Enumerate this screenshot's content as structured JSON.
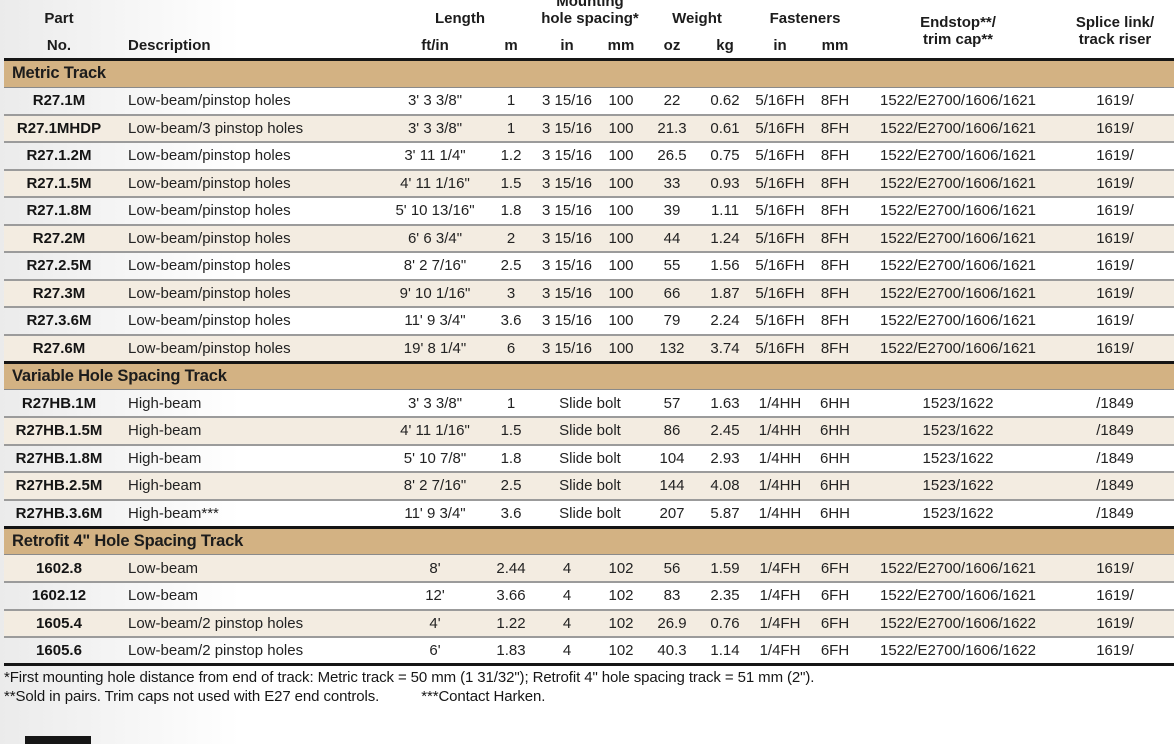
{
  "header": {
    "part_line1": "Part",
    "part_line2": "No.",
    "description": "Description",
    "length": {
      "label": "Length",
      "sub1": "ft/in",
      "sub2": "m"
    },
    "mounting": {
      "line1": "Mounting",
      "line2": "hole spacing*",
      "sub1": "in",
      "sub2": "mm"
    },
    "weight": {
      "label": "Weight",
      "sub1": "oz",
      "sub2": "kg"
    },
    "fasteners": {
      "label": "Fasteners",
      "sub1": "in",
      "sub2": "mm"
    },
    "endstop": {
      "line1": "Endstop**/",
      "line2": "trim cap**"
    },
    "splice": {
      "line1": "Splice link/",
      "line2": "track riser"
    }
  },
  "colors": {
    "section_band": "#d3b283",
    "row_shaded": "#f3ece1",
    "row_plain": "#ffffff",
    "rule_dark": "#161616",
    "rule_light": "#9b9b9b"
  },
  "sections": [
    {
      "title": "Metric Track",
      "first_row_shaded": false,
      "rows": [
        [
          "R27.1M",
          "Low-beam/pinstop holes",
          "3' 3 3/8\"",
          "1",
          "3 15/16",
          "100",
          "22",
          "0.62",
          "5/16FH",
          "8FH",
          "1522/E2700/1606/1621",
          "1619/"
        ],
        [
          "R27.1MHDP",
          "Low-beam/3 pinstop holes",
          "3' 3 3/8\"",
          "1",
          "3 15/16",
          "100",
          "21.3",
          "0.61",
          "5/16FH",
          "8FH",
          "1522/E2700/1606/1621",
          "1619/"
        ],
        [
          "R27.1.2M",
          "Low-beam/pinstop holes",
          "3' 11 1/4\"",
          "1.2",
          "3 15/16",
          "100",
          "26.5",
          "0.75",
          "5/16FH",
          "8FH",
          "1522/E2700/1606/1621",
          "1619/"
        ],
        [
          "R27.1.5M",
          "Low-beam/pinstop holes",
          "4' 11 1/16\"",
          "1.5",
          "3 15/16",
          "100",
          "33",
          "0.93",
          "5/16FH",
          "8FH",
          "1522/E2700/1606/1621",
          "1619/"
        ],
        [
          "R27.1.8M",
          "Low-beam/pinstop holes",
          "5' 10 13/16\"",
          "1.8",
          "3 15/16",
          "100",
          "39",
          "1.11",
          "5/16FH",
          "8FH",
          "1522/E2700/1606/1621",
          "1619/"
        ],
        [
          "R27.2M",
          "Low-beam/pinstop holes",
          "6' 6 3/4\"",
          "2",
          "3 15/16",
          "100",
          "44",
          "1.24",
          "5/16FH",
          "8FH",
          "1522/E2700/1606/1621",
          "1619/"
        ],
        [
          "R27.2.5M",
          "Low-beam/pinstop holes",
          "8' 2 7/16\"",
          "2.5",
          "3 15/16",
          "100",
          "55",
          "1.56",
          "5/16FH",
          "8FH",
          "1522/E2700/1606/1621",
          "1619/"
        ],
        [
          "R27.3M",
          "Low-beam/pinstop holes",
          "9' 10 1/16\"",
          "3",
          "3 15/16",
          "100",
          "66",
          "1.87",
          "5/16FH",
          "8FH",
          "1522/E2700/1606/1621",
          "1619/"
        ],
        [
          "R27.3.6M",
          "Low-beam/pinstop holes",
          "11' 9 3/4\"",
          "3.6",
          "3 15/16",
          "100",
          "79",
          "2.24",
          "5/16FH",
          "8FH",
          "1522/E2700/1606/1621",
          "1619/"
        ],
        [
          "R27.6M",
          "Low-beam/pinstop holes",
          "19' 8 1/4\"",
          "6",
          "3 15/16",
          "100",
          "132",
          "3.74",
          "5/16FH",
          "8FH",
          "1522/E2700/1606/1621",
          "1619/"
        ]
      ]
    },
    {
      "title": "Variable Hole Spacing Track",
      "first_row_shaded": false,
      "rows": [
        [
          "R27HB.1M",
          "High-beam",
          "3' 3 3/8\"",
          "1",
          "Slide bolt",
          null,
          "57",
          "1.63",
          "1/4HH",
          "6HH",
          "1523/1622",
          "/1849"
        ],
        [
          "R27HB.1.5M",
          "High-beam",
          "4' 11 1/16\"",
          "1.5",
          "Slide bolt",
          null,
          "86",
          "2.45",
          "1/4HH",
          "6HH",
          "1523/1622",
          "/1849"
        ],
        [
          "R27HB.1.8M",
          "High-beam",
          "5' 10 7/8\"",
          "1.8",
          "Slide bolt",
          null,
          "104",
          "2.93",
          "1/4HH",
          "6HH",
          "1523/1622",
          "/1849"
        ],
        [
          "R27HB.2.5M",
          "High-beam",
          "8' 2 7/16\"",
          "2.5",
          "Slide bolt",
          null,
          "144",
          "4.08",
          "1/4HH",
          "6HH",
          "1523/1622",
          "/1849"
        ],
        [
          "R27HB.3.6M",
          "High-beam***",
          "11' 9 3/4\"",
          "3.6",
          "Slide bolt",
          null,
          "207",
          "5.87",
          "1/4HH",
          "6HH",
          "1523/1622",
          "/1849"
        ]
      ]
    },
    {
      "title": "Retrofit 4\" Hole Spacing Track",
      "first_row_shaded": true,
      "rows": [
        [
          "1602.8",
          "Low-beam",
          "8'",
          "2.44",
          "4",
          "102",
          "56",
          "1.59",
          "1/4FH",
          "6FH",
          "1522/E2700/1606/1621",
          "1619/"
        ],
        [
          "1602.12",
          "Low-beam",
          "12'",
          "3.66",
          "4",
          "102",
          "83",
          "2.35",
          "1/4FH",
          "6FH",
          "1522/E2700/1606/1621",
          "1619/"
        ],
        [
          "1605.4",
          "Low-beam/2 pinstop holes",
          "4'",
          "1.22",
          "4",
          "102",
          "26.9",
          "0.76",
          "1/4FH",
          "6FH",
          "1522/E2700/1606/1622",
          "1619/"
        ],
        [
          "1605.6",
          "Low-beam/2 pinstop holes",
          "6'",
          "1.83",
          "4",
          "102",
          "40.3",
          "1.14",
          "1/4FH",
          "6FH",
          "1522/E2700/1606/1622",
          "1619/"
        ]
      ]
    }
  ],
  "footnotes": {
    "line1": "*First mounting hole distance from end of track: Metric track = 50 mm (1 31/32\"); Retrofit 4\" hole spacing track = 51 mm (2\").",
    "line2a": "**Sold in pairs. Trim caps not used with E27 end controls.",
    "line2b": "***Contact Harken."
  }
}
